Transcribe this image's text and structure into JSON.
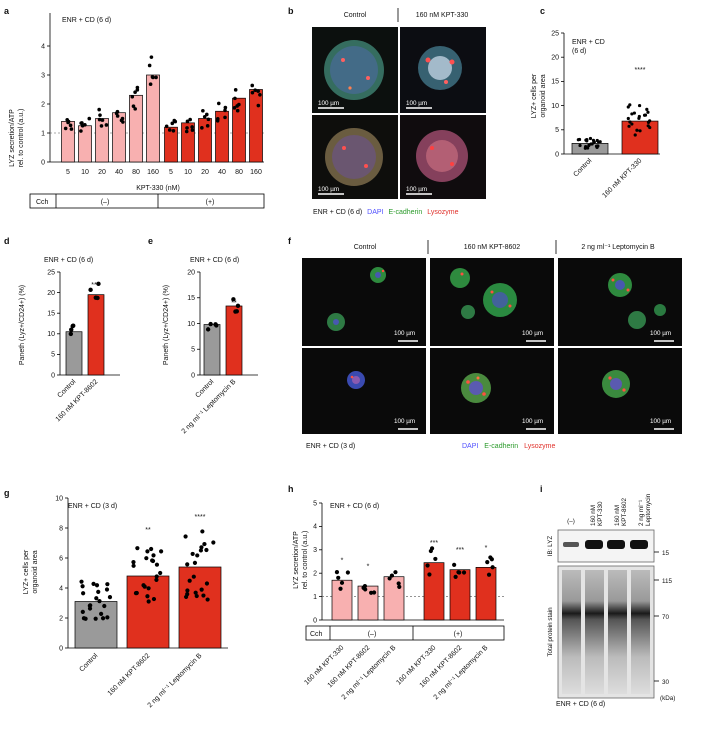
{
  "panel_letters": {
    "a": "a",
    "b": "b",
    "c": "c",
    "d": "d",
    "e": "e",
    "f": "f",
    "g": "g",
    "h": "h",
    "i": "i"
  },
  "colors": {
    "light_red": "#f8b0b0",
    "dark_red": "#e0301e",
    "gray": "#9a9a9a",
    "dapi": "#5050ff",
    "ecad": "#2a9a2a",
    "lyz": "#e0302a"
  },
  "panel_a": {
    "condition": "ENR + CD (6 d)",
    "ylabel_1": "LYZ secretion/ATP",
    "ylabel_2": "rel. to control (a.u.)",
    "xlabel": "KPT-330 (nM)",
    "cch_label": "Cch",
    "minus": "(–)",
    "plus": "(+)",
    "chart_data": {
      "type": "bar",
      "categories": [
        "5",
        "10",
        "20",
        "40",
        "80",
        "160",
        "5",
        "10",
        "20",
        "40",
        "80",
        "160"
      ],
      "values": [
        1.4,
        1.25,
        1.5,
        1.7,
        2.3,
        3.0,
        1.2,
        1.35,
        1.5,
        1.75,
        2.2,
        2.5
      ],
      "ylim": [
        0,
        4
      ],
      "yticks": [
        0,
        1,
        2,
        3,
        4
      ],
      "groups": [
        "(–)",
        "(+)"
      ]
    }
  },
  "panel_b": {
    "col_control": "Control",
    "col_treat": "160 nM KPT-330",
    "scale": "100 µm",
    "legend_prefix": "ENR + CD (6 d)",
    "legend_dapi": "DAPI",
    "legend_ecad": "E-cadherin",
    "legend_lyz": "Lysozyme"
  },
  "panel_c": {
    "condition_1": "ENR + CD",
    "condition_2": "(6 d)",
    "ylabel_1": "LYZ+ cells per",
    "ylabel_2": "organoid area",
    "sig": "****",
    "chart_data": {
      "type": "bar",
      "categories": [
        "Control",
        "160 nM KPT-330"
      ],
      "values": [
        2.2,
        6.8
      ],
      "ylim": [
        0,
        25
      ],
      "yticks": [
        0,
        5,
        10,
        15,
        20,
        25
      ]
    }
  },
  "panel_d": {
    "condition": "ENR + CD (6 d)",
    "ylabel": "Paneth (Lyz+/CD24+) (%)",
    "sig": "**",
    "chart_data": {
      "type": "bar",
      "categories": [
        "Control",
        "160 nM KPT-8602"
      ],
      "values": [
        10.5,
        19.5
      ],
      "ylim": [
        0,
        25
      ],
      "yticks": [
        0,
        5,
        10,
        15,
        20,
        25
      ]
    }
  },
  "panel_e": {
    "condition": "ENR + CD (6 d)",
    "ylabel": "Paneth (Lyz+/CD24+) (%)",
    "sig": "**",
    "chart_data": {
      "type": "bar",
      "categories": [
        "Control",
        "2 ng ml⁻¹ Leptomycin B"
      ],
      "values": [
        9.8,
        13.4
      ],
      "ylim": [
        0,
        20
      ],
      "yticks": [
        0,
        5,
        10,
        15,
        20
      ]
    }
  },
  "panel_f": {
    "col_control": "Control",
    "col_kpt": "160 nM KPT-8602",
    "col_lmb": "2 ng ml⁻¹ Leptomycin B",
    "scale": "100 µm",
    "condition": "ENR + CD (3 d)",
    "legend_dapi": "DAPI",
    "legend_ecad": "E-cadherin",
    "legend_lyz": "Lysozyme"
  },
  "panel_g": {
    "condition": "ENR + CD (3 d)",
    "ylabel_1": "LYZ+ cells per",
    "ylabel_2": "organoid area",
    "sig_kpt": "**",
    "sig_lmb": "****",
    "chart_data": {
      "type": "bar",
      "categories": [
        "Control",
        "160 nM KPT-8602",
        "2 ng ml⁻¹ Leptomycin B"
      ],
      "values": [
        3.1,
        4.8,
        5.4
      ],
      "ylim": [
        0,
        10
      ],
      "yticks": [
        0,
        2,
        4,
        6,
        8,
        10
      ]
    }
  },
  "panel_h": {
    "condition": "ENR + CD (6 d)",
    "ylabel_1": "LYZ secretion/ATP",
    "ylabel_2": "rel. to control (a.u.)",
    "cch_label": "Cch",
    "minus": "(–)",
    "plus": "(+)",
    "chart_data": {
      "type": "bar",
      "categories": [
        "160 nM KPT-330",
        "160 nM KPT-8602",
        "2 ng ml⁻¹ Leptomycin B",
        "160 nM KPT-330",
        "160 nM KPT-8602",
        "2 ng ml⁻¹ Leptomycin B"
      ],
      "values": [
        1.7,
        1.45,
        1.85,
        2.45,
        2.15,
        2.25
      ],
      "sig": [
        "*",
        "*",
        "",
        "***",
        "***",
        "*"
      ],
      "ylim": [
        0,
        5
      ],
      "yticks": [
        0,
        1,
        2,
        3,
        4,
        5
      ]
    }
  },
  "panel_i": {
    "lane_1": "(–)",
    "lane_2a": "160 nM",
    "lane_2b": "KPT-330",
    "lane_3a": "160 nM",
    "lane_3b": "KPT-8602",
    "lane_4a": "2 ng ml⁻¹",
    "lane_4b": "Leptomycin",
    "ib_label": "IB: LYZ",
    "stain_label": "Total protein stain",
    "marker_15": "15",
    "marker_115": "115",
    "marker_70": "70",
    "marker_30": "30",
    "kda": "(kDa)",
    "condition": "ENR + CD (6 d)"
  }
}
